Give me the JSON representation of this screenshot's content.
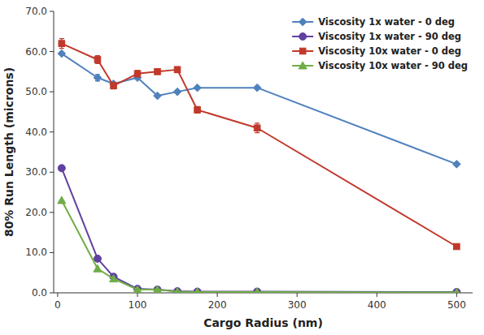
{
  "chart_data": {
    "type": "line",
    "x_label": "Cargo Radius (nm)",
    "y_label": "80% Run Length (microns)",
    "x": [
      5,
      50,
      70,
      100,
      125,
      150,
      175,
      250,
      500
    ],
    "series": [
      {
        "name": "Viscosity 1x water - 0 deg",
        "color": "#4F81BD",
        "marker": "diamond",
        "values": [
          59.5,
          53.5,
          52.0,
          53.5,
          49.0,
          50.0,
          51.0,
          51.0,
          32.0
        ],
        "yerr": [
          null,
          0.8,
          null,
          null,
          null,
          null,
          null,
          null,
          null
        ]
      },
      {
        "name": "Viscosity 1x water - 90 deg",
        "color": "#6040A0",
        "marker": "circle",
        "values": [
          31.0,
          8.5,
          4.0,
          1.0,
          0.8,
          0.4,
          0.3,
          0.3,
          0.2
        ],
        "yerr": [
          null,
          null,
          null,
          null,
          null,
          null,
          null,
          null,
          null
        ]
      },
      {
        "name": "Viscosity 10x water - 0 deg",
        "color": "#C0392B",
        "marker": "square",
        "values": [
          62.0,
          58.0,
          51.5,
          54.5,
          55.0,
          55.5,
          45.5,
          41.0,
          11.5
        ],
        "yerr": [
          1.2,
          1.0,
          0.8,
          0.8,
          0.5,
          0.7,
          0.8,
          1.2,
          0.5
        ]
      },
      {
        "name": "Viscosity 10x water - 90 deg",
        "color": "#70AD47",
        "marker": "triangle",
        "values": [
          23.0,
          6.0,
          3.5,
          0.8,
          0.8,
          0.3,
          0.2,
          0.2,
          0.1
        ],
        "yerr": [
          null,
          null,
          null,
          null,
          null,
          null,
          null,
          null,
          null
        ]
      }
    ],
    "xlim": [
      -5,
      520
    ],
    "ylim": [
      0,
      70
    ],
    "xticks": [
      0,
      100,
      200,
      300,
      400,
      500
    ],
    "yticks": [
      {
        "value": 0.0,
        "label": "0.0"
      },
      {
        "value": 10.0,
        "label": "10.0"
      },
      {
        "value": 20.0,
        "label": "20.0"
      },
      {
        "value": 30.0,
        "label": "30.0"
      },
      {
        "value": 40.0,
        "label": "40.0"
      },
      {
        "value": 50.0,
        "label": "50.0"
      },
      {
        "value": 60.0,
        "label": "60.0"
      },
      {
        "value": 70.0,
        "label": "70.0"
      }
    ],
    "grid": false,
    "legend": "upper right"
  }
}
